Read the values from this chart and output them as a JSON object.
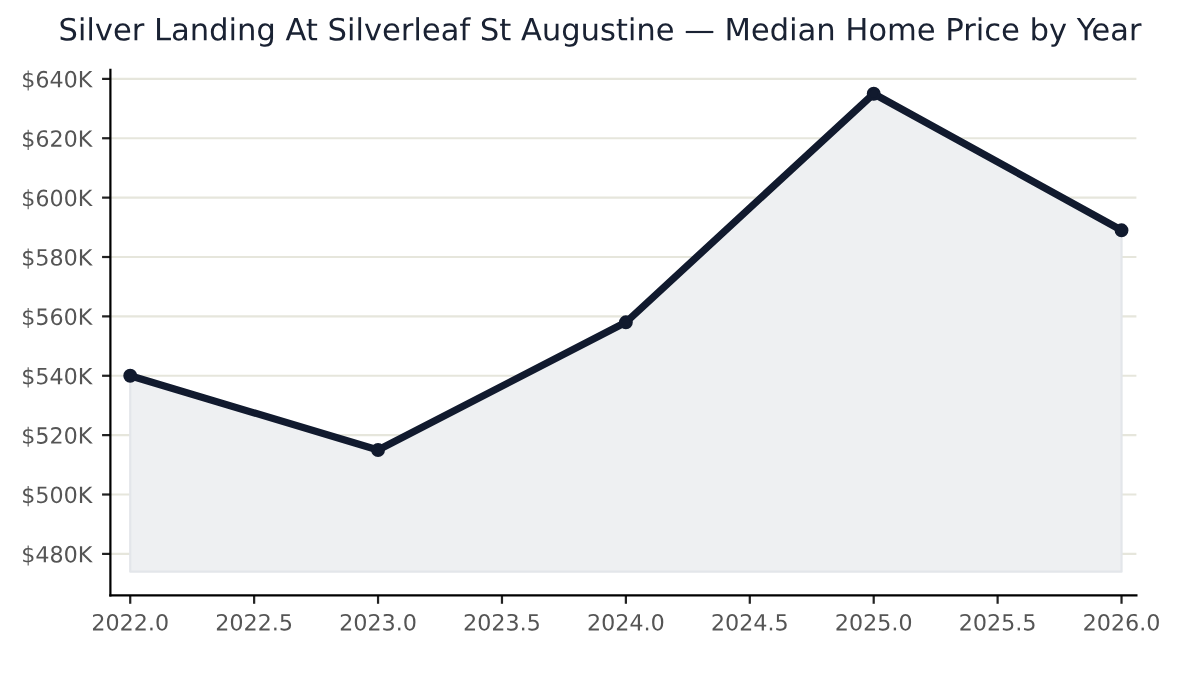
{
  "chart_data": {
    "type": "line",
    "title": "Silver Landing At Silverleaf St Augustine — Median Home Price by Year",
    "x": [
      2022,
      2023,
      2024,
      2025,
      2026
    ],
    "series": [
      {
        "color": "#111a2e",
        "values": [
          540,
          515,
          558,
          635,
          589
        ],
        "lower": [
          474,
          474,
          474,
          474,
          474
        ],
        "upper": [
          540,
          515,
          558,
          635,
          589
        ]
      }
    ],
    "xlim": [
      2021.92,
      2026.06
    ],
    "xticks": [
      {
        "value": 2022,
        "label": "2022.0"
      },
      {
        "value": 2022.5,
        "label": "2022.5"
      },
      {
        "value": 2023,
        "label": "2023.0"
      },
      {
        "value": 2023.5,
        "label": "2023.5"
      },
      {
        "value": 2024,
        "label": "2024.0"
      },
      {
        "value": 2024.5,
        "label": "2024.5"
      },
      {
        "value": 2025,
        "label": "2025.0"
      },
      {
        "value": 2025.5,
        "label": "2025.5"
      },
      {
        "value": 2026,
        "label": "2026.0"
      }
    ],
    "ylim": [
      466,
      643
    ],
    "yticks": [
      {
        "value": 480,
        "label": "$480K"
      },
      {
        "value": 500,
        "label": "$500K"
      },
      {
        "value": 520,
        "label": "$520K"
      },
      {
        "value": 540,
        "label": "$540K"
      },
      {
        "value": 560,
        "label": "$560K"
      },
      {
        "value": 580,
        "label": "$580K"
      },
      {
        "value": 600,
        "label": "$600K"
      },
      {
        "value": 620,
        "label": "$620K"
      },
      {
        "value": 640,
        "label": "$640K"
      }
    ],
    "grid": "y",
    "marker": "circle",
    "line_style": "solid"
  }
}
